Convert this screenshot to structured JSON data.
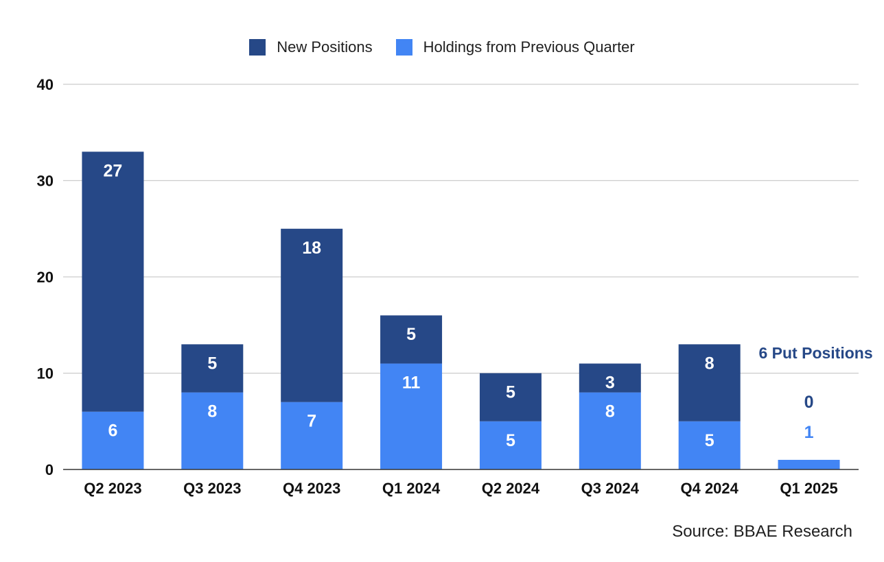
{
  "chart_data": {
    "type": "bar",
    "stacked": true,
    "title": "",
    "xlabel": "",
    "ylabel": "",
    "ylim": [
      0,
      40
    ],
    "yticks": [
      0,
      10,
      20,
      30,
      40
    ],
    "grid": true,
    "legend_position": "top-center",
    "categories": [
      "Q2 2023",
      "Q3 2023",
      "Q4 2023",
      "Q1 2024",
      "Q2 2024",
      "Q3 2024",
      "Q4 2024",
      "Q1 2025"
    ],
    "series": [
      {
        "name": "Holdings from Previous Quarter",
        "color": "#4285f4",
        "values": [
          6,
          8,
          7,
          11,
          5,
          8,
          5,
          1
        ]
      },
      {
        "name": "New Positions",
        "color": "#264887",
        "values": [
          27,
          5,
          18,
          5,
          5,
          3,
          8,
          0
        ]
      }
    ],
    "legend_order": [
      "New Positions",
      "Holdings from Previous Quarter"
    ],
    "annotation": {
      "text": "6 Put Positions",
      "category": "Q1 2025",
      "color": "#264887"
    }
  },
  "source": "Source: BBAE Research"
}
